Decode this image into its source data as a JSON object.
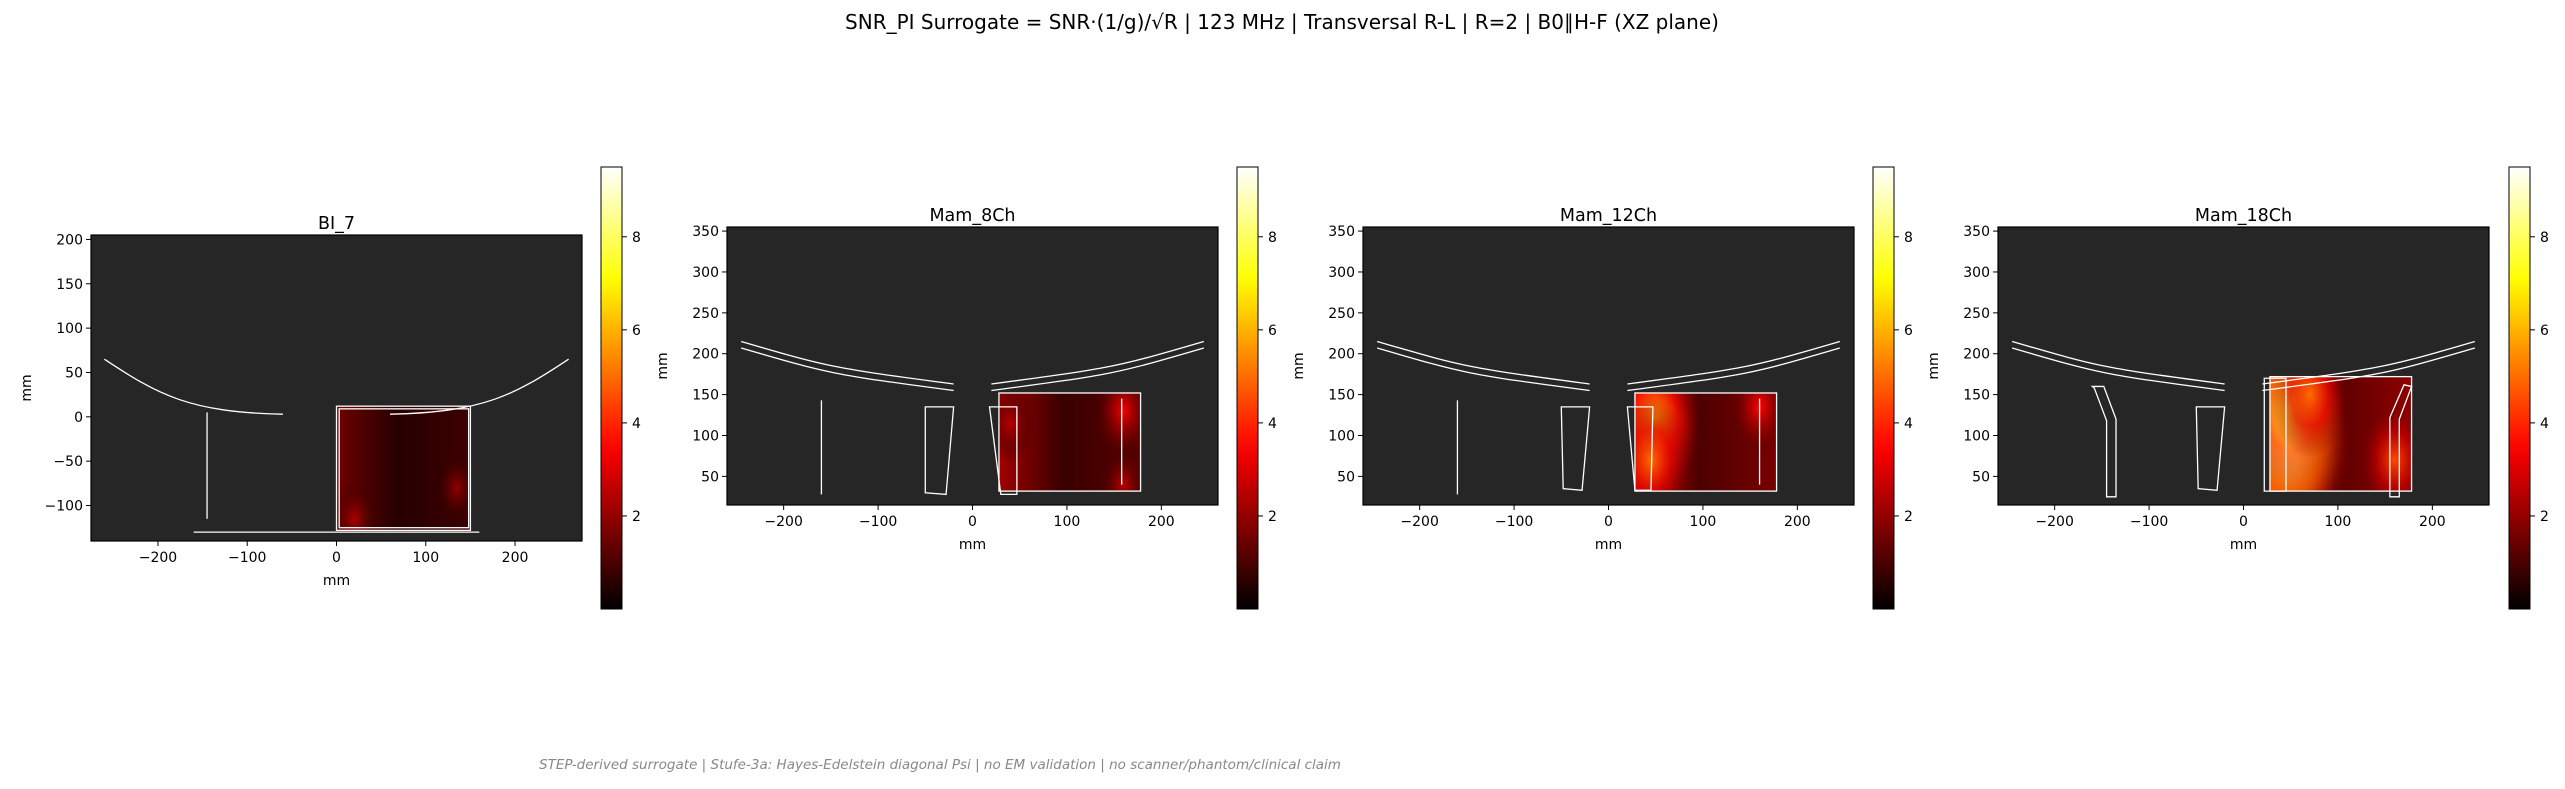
{
  "figure": {
    "title": "SNR_PI Surrogate = SNR·(1/g)/√R | 123 MHz | Transversal R-L | R=2 | B0∥H-F (XZ plane)",
    "footnote": "STEP-derived surrogate | Stufe-3a: Hayes-Edelstein diagonal Psi | no EM validation | no scanner/phantom/clinical claim"
  },
  "colors": {
    "axes_background": "#262626",
    "outline": "#ffffff",
    "colormap": "hot"
  },
  "chart_data": [
    {
      "type": "heatmap",
      "title": "BI_7",
      "xlabel": "mm",
      "ylabel": "mm",
      "xlim": [
        -275,
        275
      ],
      "ylim": [
        -140,
        205
      ],
      "xticks": [
        -200,
        -100,
        0,
        100,
        200
      ],
      "yticks": [
        -100,
        -50,
        0,
        50,
        100,
        150,
        200
      ],
      "colorbar": {
        "min": 0,
        "max": 9.5,
        "ticks": [
          2,
          4,
          6,
          8
        ]
      },
      "field_region": {
        "x": [
          0,
          150
        ],
        "y": [
          -128,
          12
        ],
        "peak": 1.5
      },
      "hotspots": [
        {
          "x": 20,
          "y": -115,
          "value": 2.3
        },
        {
          "x": 135,
          "y": -80,
          "value": 2.0
        }
      ],
      "outlines": [
        {
          "kind": "curve",
          "points": [
            [
              -260,
              65
            ],
            [
              -200,
              25
            ],
            [
              -165,
              5
            ],
            [
              -60,
              3
            ]
          ]
        },
        {
          "kind": "curve",
          "points": [
            [
              60,
              3
            ],
            [
              165,
              5
            ],
            [
              200,
              25
            ],
            [
              260,
              65
            ]
          ]
        },
        {
          "kind": "line",
          "points": [
            [
              -145,
              -115
            ],
            [
              -145,
              5
            ]
          ]
        },
        {
          "kind": "line",
          "points": [
            [
              -160,
              -130
            ],
            [
              160,
              -130
            ]
          ]
        },
        {
          "kind": "rect",
          "x": [
            0,
            150
          ],
          "y": [
            -128,
            12
          ]
        },
        {
          "kind": "rect",
          "x": [
            3,
            148
          ],
          "y": [
            -125,
            9
          ]
        }
      ]
    },
    {
      "type": "heatmap",
      "title": "Mam_8Ch",
      "xlabel": "mm",
      "ylabel": "mm",
      "xlim": [
        -260,
        260
      ],
      "ylim": [
        15,
        355
      ],
      "xticks": [
        -200,
        -100,
        0,
        100,
        200
      ],
      "yticks": [
        50,
        100,
        150,
        200,
        250,
        300,
        350
      ],
      "colorbar": {
        "min": 0,
        "max": 9.5,
        "ticks": [
          2,
          4,
          6,
          8
        ]
      },
      "field_region": {
        "x": [
          28,
          178
        ],
        "y": [
          32,
          152
        ],
        "peak": 2.2
      },
      "hotspots": [
        {
          "x": 40,
          "y": 115,
          "value": 2.5
        },
        {
          "x": 160,
          "y": 130,
          "value": 3.3
        },
        {
          "x": 160,
          "y": 40,
          "value": 2.5
        }
      ],
      "outlines": [
        {
          "kind": "arcband",
          "points": [
            [
              -245,
              215
            ],
            [
              -150,
              183
            ],
            [
              -20,
              163
            ]
          ],
          "thickness": 8
        },
        {
          "kind": "arcband",
          "points": [
            [
              20,
              163
            ],
            [
              150,
              183
            ],
            [
              245,
              215
            ]
          ],
          "thickness": 8
        },
        {
          "kind": "line",
          "points": [
            [
              -160,
              28
            ],
            [
              -160,
              143
            ]
          ]
        },
        {
          "kind": "poly",
          "points": [
            [
              -50,
              135
            ],
            [
              -20,
              135
            ],
            [
              -28,
              28
            ],
            [
              -50,
              30
            ]
          ]
        },
        {
          "kind": "poly",
          "points": [
            [
              18,
              135
            ],
            [
              47,
              135
            ],
            [
              47,
              28
            ],
            [
              30,
              28
            ]
          ]
        },
        {
          "kind": "rect",
          "x": [
            28,
            178
          ],
          "y": [
            32,
            152
          ]
        },
        {
          "kind": "line",
          "points": [
            [
              158,
              40
            ],
            [
              158,
              145
            ]
          ]
        }
      ]
    },
    {
      "type": "heatmap",
      "title": "Mam_12Ch",
      "xlabel": "mm",
      "ylabel": "mm",
      "xlim": [
        -260,
        260
      ],
      "ylim": [
        15,
        355
      ],
      "xticks": [
        -200,
        -100,
        0,
        100,
        200
      ],
      "yticks": [
        50,
        100,
        150,
        200,
        250,
        300,
        350
      ],
      "colorbar": {
        "min": 0,
        "max": 9.5,
        "ticks": [
          2,
          4,
          6,
          8
        ]
      },
      "field_region": {
        "x": [
          28,
          178
        ],
        "y": [
          32,
          152
        ],
        "peak": 3.0
      },
      "hotspots": [
        {
          "x": 38,
          "y": 100,
          "value": 7.0
        },
        {
          "x": 50,
          "y": 120,
          "value": 6.0
        },
        {
          "x": 45,
          "y": 70,
          "value": 5.0
        },
        {
          "x": 160,
          "y": 135,
          "value": 3.5
        }
      ],
      "outlines": [
        {
          "kind": "arcband",
          "points": [
            [
              -245,
              215
            ],
            [
              -150,
              183
            ],
            [
              -20,
              163
            ]
          ],
          "thickness": 8
        },
        {
          "kind": "arcband",
          "points": [
            [
              20,
              163
            ],
            [
              150,
              183
            ],
            [
              245,
              215
            ]
          ],
          "thickness": 8
        },
        {
          "kind": "line",
          "points": [
            [
              -160,
              28
            ],
            [
              -160,
              143
            ]
          ]
        },
        {
          "kind": "poly",
          "points": [
            [
              -50,
              135
            ],
            [
              -20,
              135
            ],
            [
              -28,
              33
            ],
            [
              -48,
              35
            ]
          ]
        },
        {
          "kind": "poly",
          "points": [
            [
              20,
              135
            ],
            [
              47,
              135
            ],
            [
              45,
              33
            ],
            [
              28,
              33
            ]
          ]
        },
        {
          "kind": "rect",
          "x": [
            28,
            178
          ],
          "y": [
            32,
            152
          ]
        },
        {
          "kind": "line",
          "points": [
            [
              160,
              40
            ],
            [
              160,
              145
            ]
          ]
        }
      ]
    },
    {
      "type": "heatmap",
      "title": "Mam_18Ch",
      "xlabel": "mm",
      "ylabel": "mm",
      "xlim": [
        -260,
        260
      ],
      "ylim": [
        15,
        355
      ],
      "xticks": [
        -200,
        -100,
        0,
        100,
        200
      ],
      "yticks": [
        50,
        100,
        150,
        200,
        250,
        300,
        350
      ],
      "colorbar": {
        "min": 0,
        "max": 9.5,
        "ticks": [
          2,
          4,
          6,
          8
        ]
      },
      "field_region": {
        "x": [
          28,
          178
        ],
        "y": [
          32,
          172
        ],
        "peak": 3.5
      },
      "hotspots": [
        {
          "x": 38,
          "y": 110,
          "value": 9.5
        },
        {
          "x": 50,
          "y": 90,
          "value": 8.5
        },
        {
          "x": 50,
          "y": 135,
          "value": 7.5
        },
        {
          "x": 70,
          "y": 150,
          "value": 5.0
        },
        {
          "x": 160,
          "y": 70,
          "value": 4.5
        }
      ],
      "outlines": [
        {
          "kind": "arcband",
          "points": [
            [
              -245,
              215
            ],
            [
              -150,
              183
            ],
            [
              -20,
              163
            ]
          ],
          "thickness": 8
        },
        {
          "kind": "arcband",
          "points": [
            [
              20,
              163
            ],
            [
              150,
              183
            ],
            [
              245,
              215
            ]
          ],
          "thickness": 8
        },
        {
          "kind": "poly",
          "points": [
            [
              -160,
              160
            ],
            [
              -148,
              160
            ],
            [
              -135,
              120
            ],
            [
              -135,
              25
            ],
            [
              -145,
              25
            ],
            [
              -145,
              118
            ],
            [
              -158,
              158
            ]
          ]
        },
        {
          "kind": "poly",
          "points": [
            [
              -50,
              135
            ],
            [
              -20,
              135
            ],
            [
              -28,
              33
            ],
            [
              -48,
              35
            ]
          ]
        },
        {
          "kind": "poly",
          "points": [
            [
              22,
              170
            ],
            [
              45,
              170
            ],
            [
              45,
              32
            ],
            [
              22,
              32
            ]
          ]
        },
        {
          "kind": "rect",
          "x": [
            28,
            178
          ],
          "y": [
            32,
            172
          ]
        },
        {
          "kind": "poly",
          "points": [
            [
              155,
              25
            ],
            [
              165,
              25
            ],
            [
              165,
              120
            ],
            [
              178,
              160
            ],
            [
              170,
              162
            ],
            [
              155,
              122
            ]
          ]
        }
      ]
    }
  ]
}
